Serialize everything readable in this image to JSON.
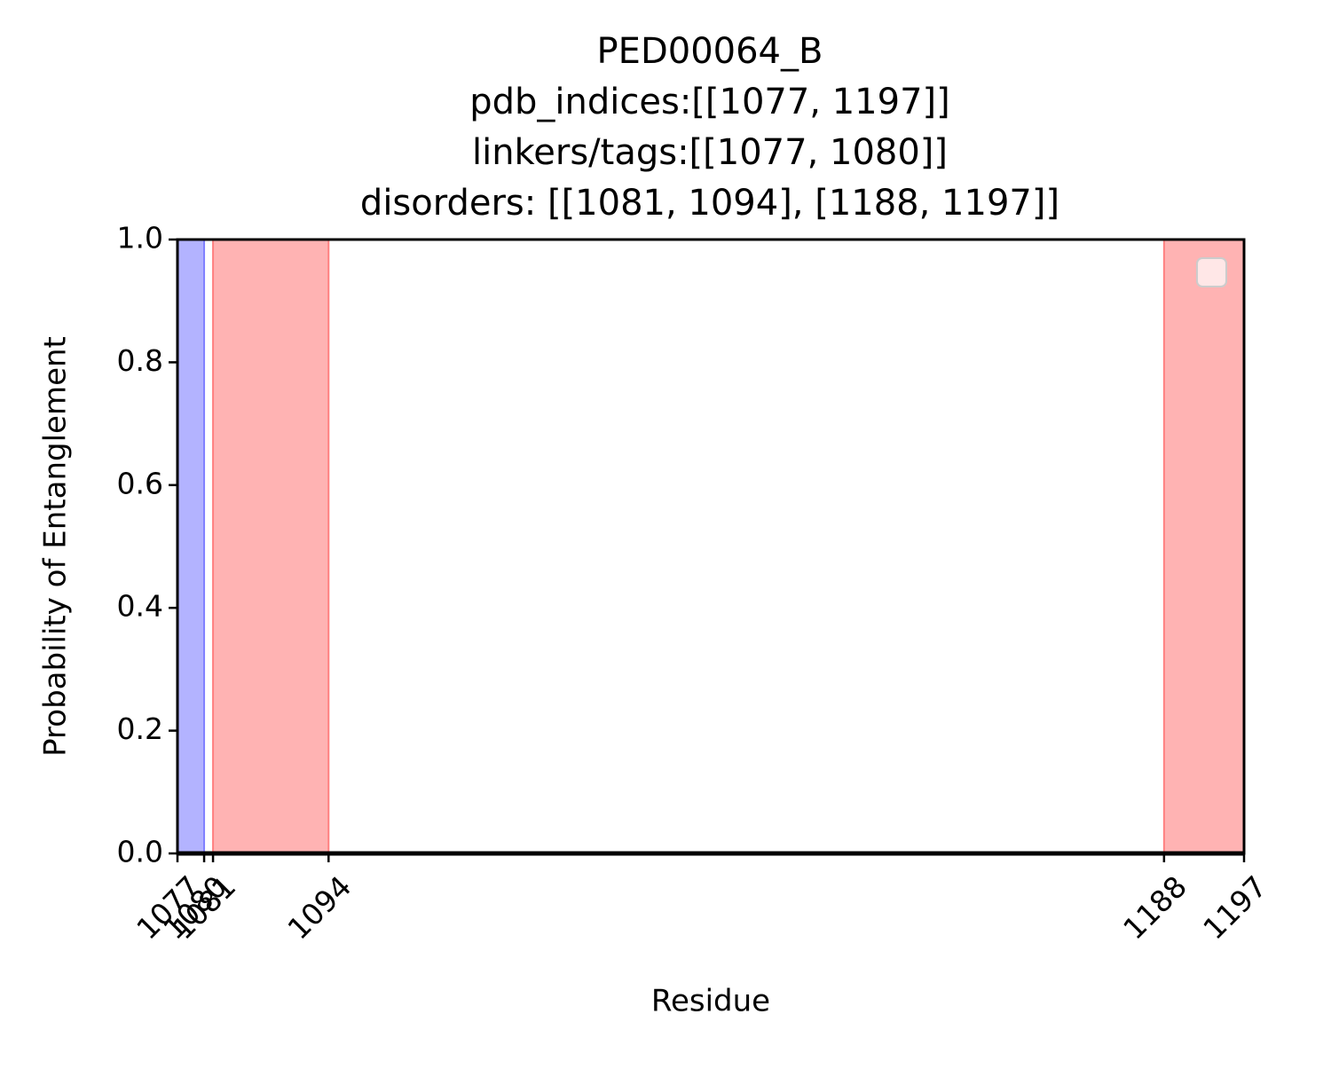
{
  "chart_data": {
    "type": "area",
    "title_lines": [
      "PED00064_B",
      "pdb_indices:[[1077, 1197]]",
      "linkers/tags:[[1077, 1080]]",
      "disorders: [[1081, 1094], [1188, 1197]]"
    ],
    "xlabel": "Residue",
    "ylabel": "Probability of Entanglement",
    "xlim": [
      1077,
      1197
    ],
    "ylim": [
      0.0,
      1.0
    ],
    "xticks": [
      1077,
      1080,
      1081,
      1094,
      1188,
      1197
    ],
    "xtick_labels": [
      "1077",
      "1080",
      "1081",
      "1094",
      "1188",
      "1197"
    ],
    "yticks": [
      0.0,
      0.2,
      0.4,
      0.6,
      0.8,
      1.0
    ],
    "ytick_labels": [
      "0.0",
      "0.2",
      "0.4",
      "0.6",
      "0.8",
      "1.0"
    ],
    "shaded_regions": [
      {
        "kind": "linker/tag",
        "start": 1077,
        "end": 1080,
        "color": "#b3b3ff",
        "edge_color": "#8080ff"
      },
      {
        "kind": "disorder",
        "start": 1081,
        "end": 1094,
        "color": "#ffb3b3",
        "edge_color": "#ff8080"
      },
      {
        "kind": "disorder",
        "start": 1188,
        "end": 1197,
        "color": "#ffb3b3",
        "edge_color": "#ff8080"
      }
    ],
    "series": [
      {
        "x": [
          1077,
          1197
        ],
        "y": [
          0.0,
          0.0
        ],
        "color": "#000000"
      }
    ],
    "legend": {
      "placement": "upper right",
      "entries": []
    },
    "grid": false
  }
}
